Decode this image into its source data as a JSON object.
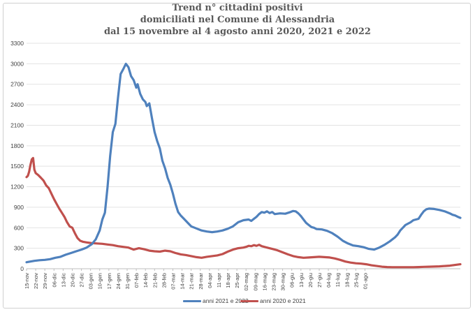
{
  "title_lines": [
    "Trend n° cittadini positivi",
    "domiciliati nel Comune di Alessandria",
    "dal 15 novembre al 4 agosto anni 2020, 2021 e 2022"
  ],
  "chart_data": {
    "type": "line",
    "title": "Trend n° cittadini positivi domiciliati nel Comune di Alessandria dal 15 novembre al 4 agosto anni 2020, 2021 e 2022",
    "xlabel": "",
    "ylabel": "",
    "ylim": [
      0,
      3300
    ],
    "yticks": [
      0,
      300,
      600,
      900,
      1200,
      1500,
      1800,
      2100,
      2400,
      2700,
      3000,
      3300
    ],
    "x_tick_labels": [
      "15-nov",
      "22-nov",
      "29-nov",
      "06-dic",
      "13-dic",
      "20-dic",
      "27-dic",
      "03-gen",
      "10-gen",
      "17-gen",
      "24-gen",
      "31-gen",
      "07-feb",
      "14-feb",
      "21-feb",
      "28-feb",
      "07-mar",
      "14-mar",
      "21-mar",
      "28-mar",
      "04-apr",
      "11-apr",
      "18-apr",
      "25-apr",
      "02-mag",
      "09-mag",
      "16-mag",
      "23-mag",
      "30-mag",
      "06-giu",
      "13-giu",
      "20-giu",
      "27-giu",
      "04-lug",
      "11-lug",
      "18-lug",
      "25-lug",
      "01-ago"
    ],
    "x_unit": "day",
    "x_start": "15-nov",
    "x_end": "04-ago",
    "grid": true,
    "legend_position": "bottom",
    "series": [
      {
        "name": "anni 2021 e 2022",
        "color": "#4f81bd",
        "points": [
          [
            0,
            95
          ],
          [
            3,
            105
          ],
          [
            6,
            115
          ],
          [
            10,
            125
          ],
          [
            14,
            130
          ],
          [
            18,
            140
          ],
          [
            22,
            160
          ],
          [
            26,
            175
          ],
          [
            30,
            205
          ],
          [
            34,
            230
          ],
          [
            38,
            255
          ],
          [
            42,
            280
          ],
          [
            46,
            310
          ],
          [
            50,
            360
          ],
          [
            53,
            430
          ],
          [
            56,
            560
          ],
          [
            58,
            720
          ],
          [
            60,
            820
          ],
          [
            62,
            1200
          ],
          [
            64,
            1650
          ],
          [
            66,
            2000
          ],
          [
            68,
            2120
          ],
          [
            70,
            2500
          ],
          [
            72,
            2850
          ],
          [
            74,
            2920
          ],
          [
            76,
            3000
          ],
          [
            78,
            2950
          ],
          [
            80,
            2820
          ],
          [
            82,
            2760
          ],
          [
            84,
            2650
          ],
          [
            85,
            2700
          ],
          [
            87,
            2560
          ],
          [
            89,
            2480
          ],
          [
            91,
            2440
          ],
          [
            92,
            2380
          ],
          [
            94,
            2420
          ],
          [
            96,
            2200
          ],
          [
            98,
            2000
          ],
          [
            100,
            1870
          ],
          [
            102,
            1760
          ],
          [
            104,
            1580
          ],
          [
            106,
            1470
          ],
          [
            108,
            1330
          ],
          [
            110,
            1230
          ],
          [
            112,
            1100
          ],
          [
            114,
            950
          ],
          [
            116,
            830
          ],
          [
            118,
            780
          ],
          [
            120,
            740
          ],
          [
            122,
            700
          ],
          [
            124,
            660
          ],
          [
            126,
            620
          ],
          [
            130,
            590
          ],
          [
            134,
            560
          ],
          [
            138,
            545
          ],
          [
            142,
            535
          ],
          [
            146,
            545
          ],
          [
            150,
            560
          ],
          [
            154,
            585
          ],
          [
            158,
            620
          ],
          [
            162,
            680
          ],
          [
            166,
            710
          ],
          [
            170,
            720
          ],
          [
            172,
            700
          ],
          [
            174,
            730
          ],
          [
            176,
            760
          ],
          [
            178,
            800
          ],
          [
            180,
            830
          ],
          [
            182,
            820
          ],
          [
            184,
            840
          ],
          [
            186,
            815
          ],
          [
            188,
            830
          ],
          [
            190,
            800
          ],
          [
            194,
            810
          ],
          [
            198,
            805
          ],
          [
            202,
            830
          ],
          [
            204,
            845
          ],
          [
            206,
            840
          ],
          [
            208,
            810
          ],
          [
            210,
            770
          ],
          [
            212,
            720
          ],
          [
            214,
            670
          ],
          [
            216,
            640
          ],
          [
            218,
            610
          ],
          [
            220,
            600
          ],
          [
            222,
            580
          ],
          [
            226,
            575
          ],
          [
            230,
            555
          ],
          [
            234,
            520
          ],
          [
            238,
            470
          ],
          [
            242,
            410
          ],
          [
            246,
            370
          ],
          [
            250,
            340
          ],
          [
            254,
            330
          ],
          [
            258,
            315
          ],
          [
            262,
            290
          ],
          [
            266,
            280
          ],
          [
            270,
            310
          ],
          [
            274,
            350
          ],
          [
            278,
            400
          ],
          [
            282,
            460
          ],
          [
            284,
            500
          ],
          [
            286,
            560
          ],
          [
            288,
            600
          ],
          [
            290,
            640
          ],
          [
            294,
            680
          ],
          [
            296,
            710
          ],
          [
            298,
            720
          ],
          [
            300,
            730
          ],
          [
            302,
            790
          ],
          [
            304,
            840
          ],
          [
            306,
            870
          ],
          [
            308,
            880
          ],
          [
            312,
            875
          ],
          [
            316,
            860
          ],
          [
            320,
            840
          ],
          [
            324,
            810
          ],
          [
            326,
            790
          ],
          [
            328,
            780
          ],
          [
            330,
            760
          ],
          [
            332,
            745
          ]
        ]
      },
      {
        "name": "anni 2020 e 2021",
        "color": "#c0504d",
        "points": [
          [
            0,
            1340
          ],
          [
            1,
            1360
          ],
          [
            2,
            1420
          ],
          [
            3,
            1520
          ],
          [
            4,
            1600
          ],
          [
            5,
            1620
          ],
          [
            6,
            1450
          ],
          [
            7,
            1400
          ],
          [
            9,
            1370
          ],
          [
            11,
            1330
          ],
          [
            13,
            1290
          ],
          [
            15,
            1220
          ],
          [
            17,
            1180
          ],
          [
            19,
            1100
          ],
          [
            21,
            1020
          ],
          [
            23,
            950
          ],
          [
            25,
            880
          ],
          [
            27,
            820
          ],
          [
            29,
            760
          ],
          [
            31,
            680
          ],
          [
            33,
            620
          ],
          [
            35,
            600
          ],
          [
            37,
            520
          ],
          [
            39,
            450
          ],
          [
            41,
            410
          ],
          [
            43,
            395
          ],
          [
            46,
            385
          ],
          [
            50,
            375
          ],
          [
            54,
            370
          ],
          [
            58,
            365
          ],
          [
            62,
            355
          ],
          [
            66,
            345
          ],
          [
            70,
            330
          ],
          [
            74,
            320
          ],
          [
            78,
            310
          ],
          [
            82,
            280
          ],
          [
            86,
            300
          ],
          [
            90,
            285
          ],
          [
            94,
            265
          ],
          [
            98,
            255
          ],
          [
            102,
            250
          ],
          [
            106,
            265
          ],
          [
            110,
            255
          ],
          [
            114,
            230
          ],
          [
            118,
            210
          ],
          [
            122,
            200
          ],
          [
            126,
            185
          ],
          [
            130,
            170
          ],
          [
            134,
            160
          ],
          [
            138,
            175
          ],
          [
            142,
            185
          ],
          [
            146,
            195
          ],
          [
            150,
            215
          ],
          [
            154,
            250
          ],
          [
            158,
            280
          ],
          [
            162,
            300
          ],
          [
            166,
            310
          ],
          [
            168,
            320
          ],
          [
            170,
            335
          ],
          [
            172,
            330
          ],
          [
            174,
            345
          ],
          [
            176,
            335
          ],
          [
            178,
            350
          ],
          [
            180,
            330
          ],
          [
            184,
            310
          ],
          [
            188,
            290
          ],
          [
            192,
            270
          ],
          [
            196,
            240
          ],
          [
            200,
            210
          ],
          [
            204,
            185
          ],
          [
            208,
            170
          ],
          [
            212,
            160
          ],
          [
            216,
            165
          ],
          [
            220,
            170
          ],
          [
            224,
            175
          ],
          [
            228,
            170
          ],
          [
            232,
            165
          ],
          [
            236,
            150
          ],
          [
            240,
            130
          ],
          [
            244,
            105
          ],
          [
            248,
            90
          ],
          [
            252,
            80
          ],
          [
            256,
            75
          ],
          [
            260,
            65
          ],
          [
            264,
            50
          ],
          [
            268,
            40
          ],
          [
            272,
            30
          ],
          [
            276,
            25
          ],
          [
            280,
            22
          ],
          [
            284,
            22
          ],
          [
            288,
            22
          ],
          [
            292,
            22
          ],
          [
            296,
            22
          ],
          [
            300,
            25
          ],
          [
            304,
            28
          ],
          [
            308,
            30
          ],
          [
            312,
            32
          ],
          [
            316,
            35
          ],
          [
            320,
            40
          ],
          [
            324,
            45
          ],
          [
            328,
            55
          ],
          [
            332,
            65
          ]
        ]
      }
    ]
  }
}
